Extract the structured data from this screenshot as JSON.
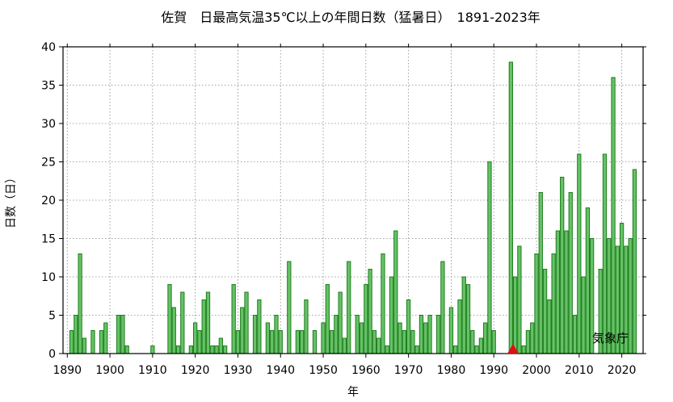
{
  "chart_data": {
    "type": "bar",
    "title": "佐賀　日最高気温35℃以上の年間日数（猛暑日）　1891-2023年",
    "xlabel": "年",
    "ylabel": "日数（日）",
    "credit": "気象庁",
    "xlim": [
      1889,
      2025
    ],
    "ylim": [
      0,
      40
    ],
    "xticks": [
      1890,
      1900,
      1910,
      1920,
      1930,
      1940,
      1950,
      1960,
      1970,
      1980,
      1990,
      2000,
      2010,
      2020
    ],
    "yticks": [
      0,
      5,
      10,
      15,
      20,
      25,
      30,
      35,
      40
    ],
    "grid": true,
    "colors": {
      "bar_fill": "#66c266",
      "bar_stroke": "#1e7d1e",
      "marker": "#dd1111",
      "grid": "#888888"
    },
    "marker": {
      "year": 1994.5,
      "value": 0,
      "shape": "triangle"
    },
    "years": [
      1891,
      1892,
      1893,
      1894,
      1895,
      1896,
      1897,
      1898,
      1899,
      1900,
      1901,
      1902,
      1903,
      1904,
      1905,
      1906,
      1907,
      1908,
      1909,
      1910,
      1911,
      1912,
      1913,
      1914,
      1915,
      1916,
      1917,
      1918,
      1919,
      1920,
      1921,
      1922,
      1923,
      1924,
      1925,
      1926,
      1927,
      1928,
      1929,
      1930,
      1931,
      1932,
      1933,
      1934,
      1935,
      1936,
      1937,
      1938,
      1939,
      1940,
      1941,
      1942,
      1943,
      1944,
      1945,
      1946,
      1947,
      1948,
      1949,
      1950,
      1951,
      1952,
      1953,
      1954,
      1955,
      1956,
      1957,
      1958,
      1959,
      1960,
      1961,
      1962,
      1963,
      1964,
      1965,
      1966,
      1967,
      1968,
      1969,
      1970,
      1971,
      1972,
      1973,
      1974,
      1975,
      1976,
      1977,
      1978,
      1979,
      1980,
      1981,
      1982,
      1983,
      1984,
      1985,
      1986,
      1987,
      1988,
      1989,
      1990,
      1991,
      1992,
      1993,
      1994,
      1995,
      1996,
      1997,
      1998,
      1999,
      2000,
      2001,
      2002,
      2003,
      2004,
      2005,
      2006,
      2007,
      2008,
      2009,
      2010,
      2011,
      2012,
      2013,
      2014,
      2015,
      2016,
      2017,
      2018,
      2019,
      2020,
      2021,
      2022,
      2023
    ],
    "values": [
      3,
      5,
      13,
      2,
      0,
      3,
      0,
      3,
      4,
      0,
      0,
      5,
      5,
      1,
      0,
      0,
      0,
      0,
      0,
      1,
      0,
      0,
      0,
      9,
      6,
      1,
      8,
      0,
      1,
      4,
      3,
      7,
      8,
      1,
      1,
      2,
      1,
      0,
      9,
      3,
      6,
      8,
      0,
      5,
      7,
      0,
      4,
      3,
      5,
      3,
      0,
      12,
      0,
      3,
      3,
      7,
      0,
      3,
      0,
      4,
      9,
      3,
      5,
      8,
      2,
      12,
      0,
      5,
      4,
      9,
      11,
      3,
      2,
      13,
      1,
      10,
      16,
      4,
      3,
      7,
      3,
      1,
      5,
      4,
      5,
      0,
      5,
      12,
      0,
      6,
      1,
      7,
      10,
      9,
      3,
      1,
      2,
      4,
      25,
      3,
      0,
      0,
      0,
      38,
      10,
      14,
      1,
      3,
      4,
      13,
      21,
      11,
      7,
      13,
      16,
      23,
      16,
      21,
      5,
      26,
      10,
      19,
      15,
      0,
      11,
      26,
      15,
      36,
      14,
      17,
      14,
      15,
      24
    ]
  }
}
